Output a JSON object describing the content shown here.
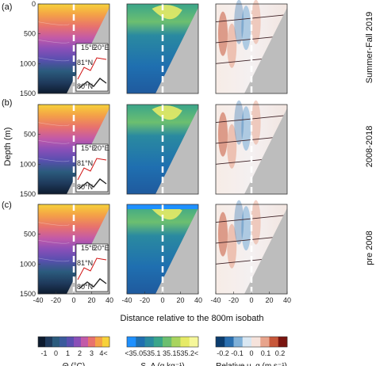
{
  "chart_data": {
    "type": "heatmap",
    "layout": "3x3 panel grid of ocean cross-sections with colorbars",
    "panel_labels": [
      "(a)",
      "(b)",
      "(c)"
    ],
    "row_labels": [
      "Summer-Fall 2019",
      "2008-2018",
      "pre 2008"
    ],
    "xlabel": "Distance relative to the 800m isobath",
    "ylabel": "Depth (m)",
    "xlim": [
      -40,
      40
    ],
    "ylim": [
      1500,
      0
    ],
    "x_ticks": [
      "-40",
      "-20",
      "0",
      "20",
      "40"
    ],
    "y_ticks": [
      "0",
      "500",
      "1000",
      "1500"
    ],
    "isobath_marker_x": 0,
    "columns": [
      {
        "variable": "Theta",
        "colorbar_label": "Θ (°C)",
        "colorbar_ticks": [
          "-1",
          "0",
          "1",
          "2",
          "3",
          "4<"
        ],
        "colors": [
          "#0d1b2e",
          "#1f3a5c",
          "#2b5b7d",
          "#3a5a9c",
          "#5a4fb0",
          "#8a4fb8",
          "#c25aa8",
          "#e8726d",
          "#f4a147",
          "#f7d23a"
        ]
      },
      {
        "variable": "Absolute Salinity",
        "colorbar_label": "S_A (g kg⁻¹)",
        "colorbar_ticks": [
          "<35.05",
          "35.1",
          "35.15",
          "35.2<"
        ],
        "colors": [
          "#1e90ff",
          "#1f6fb0",
          "#2a8aa0",
          "#3aa58a",
          "#6cbf70",
          "#a9d45e",
          "#e6ea66",
          "#f6f79a"
        ]
      },
      {
        "variable": "Relative velocity",
        "colorbar_label": "Relative u_q (m s⁻¹)",
        "colorbar_ticks": [
          "-0.2",
          "-0.1",
          "0",
          "0.1",
          "0.2"
        ],
        "colors": [
          "#0b3c6e",
          "#2a6fb0",
          "#7fb0d8",
          "#d9e7f2",
          "#f6e3dc",
          "#e8a48c",
          "#c7573a",
          "#7a1510"
        ]
      }
    ],
    "inset_labels": {
      "lon_ticks": [
        "15°E",
        "20°E"
      ],
      "lat_ticks": [
        "81°N",
        "80°N"
      ]
    },
    "rows": [
      {
        "row": "Summer-Fall 2019",
        "temp_surface_max": "4<",
        "temp_bottom_min": "-1"
      },
      {
        "row": "2008-2018",
        "temp_surface_max": "4<",
        "temp_bottom_min": "-1"
      },
      {
        "row": "pre 2008",
        "temp_surface_max": "4<",
        "temp_bottom_min": "-1"
      }
    ]
  }
}
